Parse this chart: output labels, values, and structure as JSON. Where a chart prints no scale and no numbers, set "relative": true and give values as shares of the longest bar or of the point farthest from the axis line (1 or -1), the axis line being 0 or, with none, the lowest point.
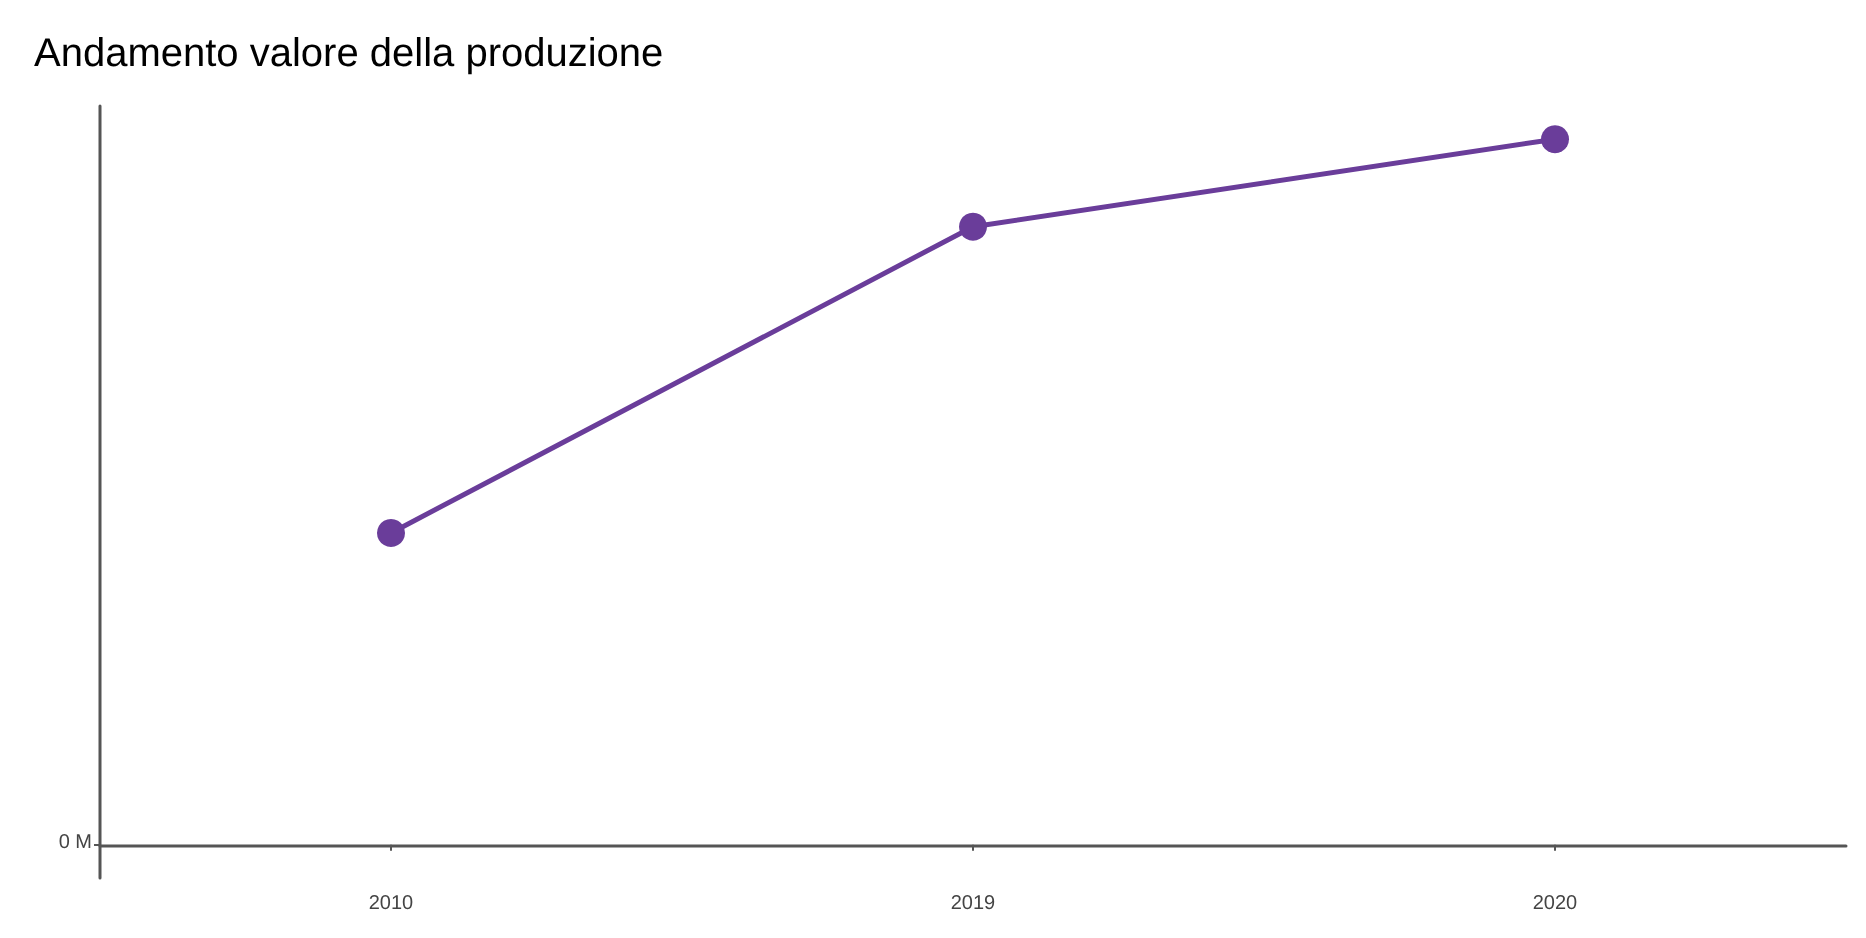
{
  "chart_data": {
    "type": "line",
    "title": "Andamento valore della produzione",
    "categories": [
      "2010",
      "2019",
      "2020"
    ],
    "series": [
      {
        "color": "#6a3d9a",
        "values": [
          0.442,
          0.876,
          1
        ]
      }
    ],
    "relative": true,
    "marker": "circle",
    "line_style": "solid",
    "grid": false,
    "annotations": [
      "0 M"
    ]
  }
}
